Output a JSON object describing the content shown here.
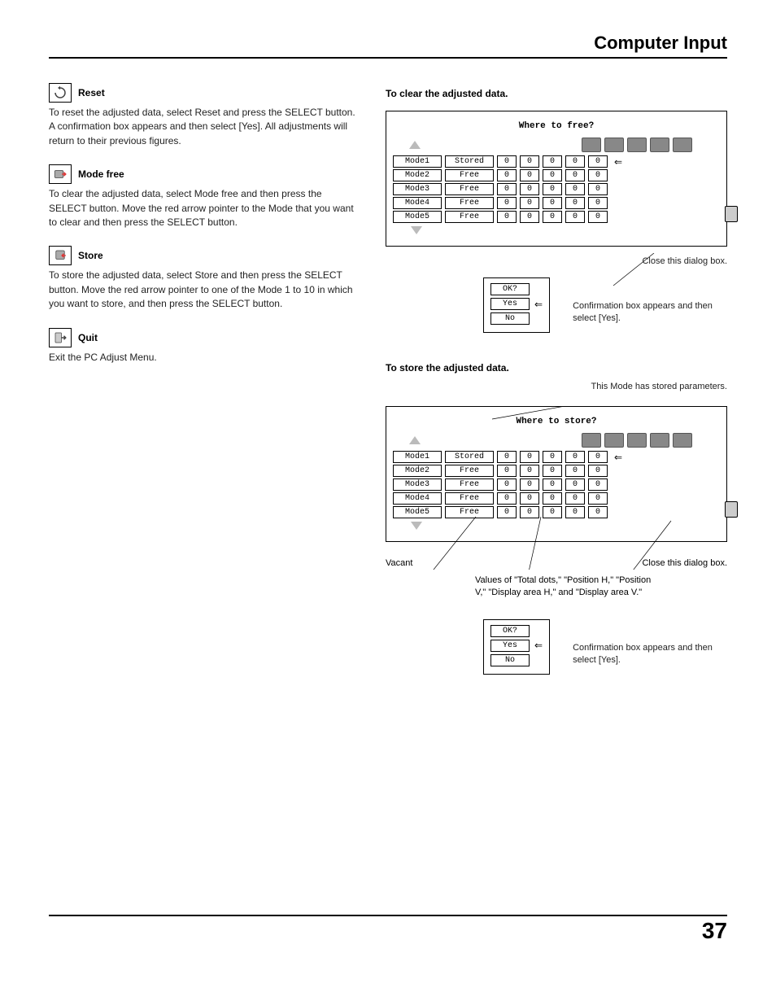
{
  "page_title": "Computer Input",
  "page_number": "37",
  "sections": {
    "reset": {
      "title": "Reset",
      "body": "To reset the adjusted data, select Reset and press the SELECT button. A confirmation box appears and then select [Yes]. All adjustments will return to their previous figures."
    },
    "mode_free": {
      "title": "Mode free",
      "body": "To clear the adjusted data, select Mode free and then press the SELECT button. Move the red arrow pointer to the Mode that you want to clear and then press the SELECT button."
    },
    "store": {
      "title": "Store",
      "body": "To store the adjusted data, select Store and then press the SELECT button. Move the red arrow pointer to one of the Mode 1 to 10 in which you want to store, and then press the SELECT button."
    },
    "quit": {
      "title": "Quit",
      "body": "Exit the PC Adjust Menu."
    }
  },
  "clear_block": {
    "heading": "To clear the adjusted data.",
    "dialog_title": "Where to free?",
    "rows": [
      {
        "mode": "Mode1",
        "state": "Stored",
        "v": [
          "0",
          "0",
          "0",
          "0",
          "0"
        ],
        "arrow": true
      },
      {
        "mode": "Mode2",
        "state": "Free",
        "v": [
          "0",
          "0",
          "0",
          "0",
          "0"
        ],
        "arrow": false
      },
      {
        "mode": "Mode3",
        "state": "Free",
        "v": [
          "0",
          "0",
          "0",
          "0",
          "0"
        ],
        "arrow": false
      },
      {
        "mode": "Mode4",
        "state": "Free",
        "v": [
          "0",
          "0",
          "0",
          "0",
          "0"
        ],
        "arrow": false
      },
      {
        "mode": "Mode5",
        "state": "Free",
        "v": [
          "0",
          "0",
          "0",
          "0",
          "0"
        ],
        "arrow": false
      }
    ],
    "close_note": "Close this dialog box.",
    "confirm": {
      "title": "OK?",
      "yes": "Yes",
      "no": "No"
    },
    "confirm_note": "Confirmation box appears and then select [Yes]."
  },
  "store_block": {
    "heading": "To store the adjusted data.",
    "top_note": "This Mode has stored parameters.",
    "dialog_title": "Where to store?",
    "rows": [
      {
        "mode": "Mode1",
        "state": "Stored",
        "v": [
          "0",
          "0",
          "0",
          "0",
          "0"
        ],
        "arrow": true
      },
      {
        "mode": "Mode2",
        "state": "Free",
        "v": [
          "0",
          "0",
          "0",
          "0",
          "0"
        ],
        "arrow": false
      },
      {
        "mode": "Mode3",
        "state": "Free",
        "v": [
          "0",
          "0",
          "0",
          "0",
          "0"
        ],
        "arrow": false
      },
      {
        "mode": "Mode4",
        "state": "Free",
        "v": [
          "0",
          "0",
          "0",
          "0",
          "0"
        ],
        "arrow": false
      },
      {
        "mode": "Mode5",
        "state": "Free",
        "v": [
          "0",
          "0",
          "0",
          "0",
          "0"
        ],
        "arrow": false
      }
    ],
    "vacant_label": "Vacant",
    "close_note": "Close this dialog box.",
    "values_note": "Values of \"Total dots,\" \"Position H,\" \"Position V,\" \"Display area H,\" and \"Display area V.\"",
    "confirm": {
      "title": "OK?",
      "yes": "Yes",
      "no": "No"
    },
    "confirm_note": "Confirmation box appears and then select [Yes]."
  },
  "colors": {
    "border": "#000000",
    "icon_fill": "#888888",
    "triangle": "#bbbbbb",
    "text": "#222222"
  }
}
